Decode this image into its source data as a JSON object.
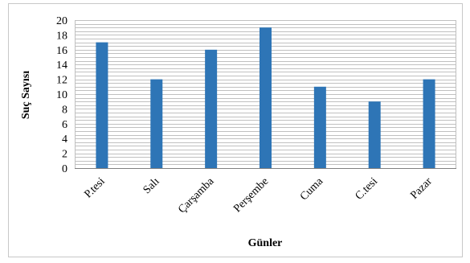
{
  "chart_data": {
    "type": "bar",
    "title": "",
    "xlabel": "Günler",
    "ylabel": "Suç Sayısı",
    "categories": [
      "P.tesi",
      "Salı",
      "Çarşamba",
      "Perşembe",
      "Cuma",
      "C.tesi",
      "Pazar"
    ],
    "values": [
      17,
      12,
      16,
      19,
      11,
      9,
      12
    ],
    "ylim": [
      0,
      20
    ],
    "ytick_step": 2,
    "minor_grid_step": 0.5,
    "grid": true,
    "legend": "none",
    "bar_color": "#2e75b6",
    "grid_color": "#c0c0c0"
  }
}
